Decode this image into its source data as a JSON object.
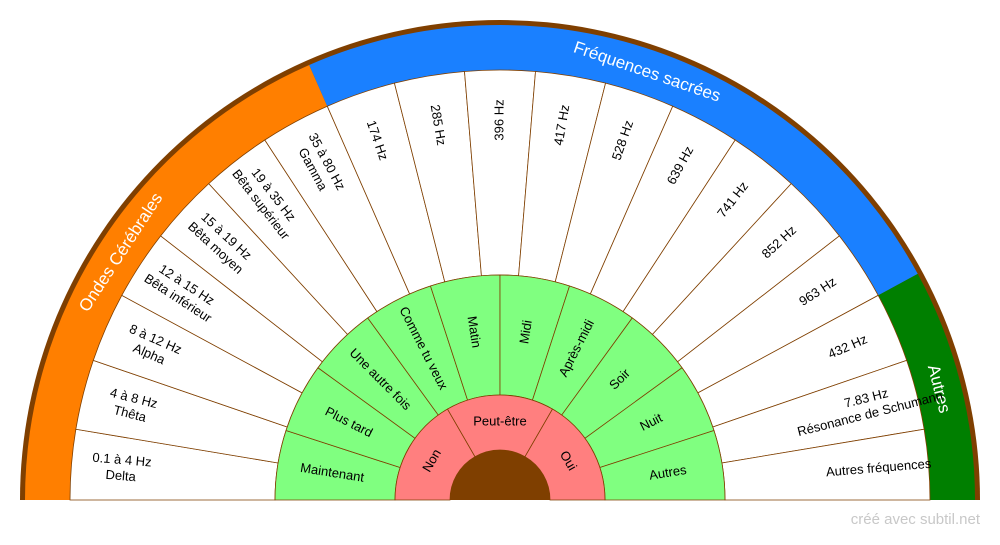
{
  "bands": [
    {
      "label": "Ondes Cérébrales",
      "sectors": [
        [
          "0.1 à 4 Hz",
          "Delta"
        ],
        [
          "4 à 8 Hz",
          "Thêta"
        ],
        [
          "8 à 12 Hz",
          "Alpha"
        ],
        [
          "12 à 15 Hz",
          "Bêta inférieur"
        ],
        [
          "15 à 19 Hz",
          "Bêta moyen"
        ],
        [
          "19 à 35 Hz",
          "Bêta supérieur"
        ],
        [
          "35 à 80 Hz",
          "Gamma"
        ]
      ]
    },
    {
      "label": "Fréquences sacrées",
      "sectors": [
        [
          "174 Hz"
        ],
        [
          "285 Hz"
        ],
        [
          "396 Hz"
        ],
        [
          "417 Hz"
        ],
        [
          "528 Hz"
        ],
        [
          "639 Hz"
        ],
        [
          "741 Hz"
        ],
        [
          "852 Hz"
        ],
        [
          "963 Hz"
        ]
      ]
    },
    {
      "label": "Autres",
      "sectors": [
        [
          "432 Hz"
        ],
        [
          "7.83 Hz",
          "Résonance de Schumann"
        ],
        [
          "Autres fréquences"
        ]
      ]
    }
  ],
  "middle": [
    "Maintenant",
    "Plus tard",
    "Une autre fois",
    "Comme tu veux",
    "Matin",
    "Midi",
    "Après-midi",
    "Soir",
    "Nuit",
    "Autres"
  ],
  "inner": [
    "Non",
    "Peut-être",
    "Oui"
  ],
  "footer": "créé avec subtil.net"
}
